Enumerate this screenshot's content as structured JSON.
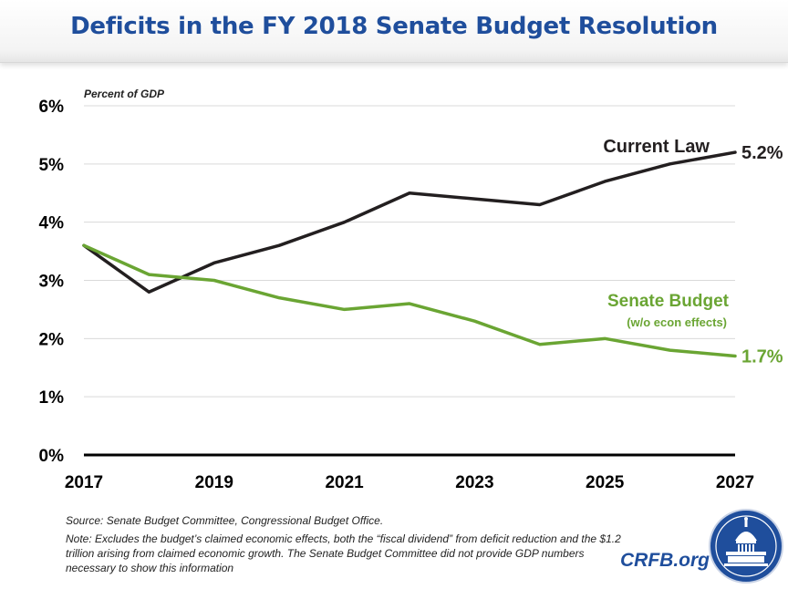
{
  "title": "Deficits in the FY 2018 Senate Budget Resolution",
  "colors": {
    "title": "#1f4e9c",
    "current_law": "#231f20",
    "senate_budget": "#6aa533"
  },
  "chart_data": {
    "type": "line",
    "title": "Deficits in the FY 2018 Senate Budget Resolution",
    "ylabel": "Percent of GDP",
    "xlabel": "",
    "ylim": [
      0,
      6
    ],
    "xlim": [
      2017,
      2027
    ],
    "grid": true,
    "y_ticks": [
      0,
      1,
      2,
      3,
      4,
      5,
      6
    ],
    "y_tick_labels": [
      "0%",
      "1%",
      "2%",
      "3%",
      "4%",
      "5%",
      "6%"
    ],
    "x_ticks": [
      2017,
      2019,
      2021,
      2023,
      2025,
      2027
    ],
    "x_tick_labels": [
      "2017",
      "2019",
      "2021",
      "2023",
      "2025",
      "2027"
    ],
    "x": [
      2017,
      2018,
      2019,
      2020,
      2021,
      2022,
      2023,
      2024,
      2025,
      2026,
      2027
    ],
    "series": [
      {
        "name": "Current Law",
        "color": "#231f20",
        "values": [
          3.6,
          2.8,
          3.3,
          3.6,
          4.0,
          4.5,
          4.4,
          4.3,
          4.7,
          5.0,
          5.2
        ],
        "end_label": "5.2%"
      },
      {
        "name": "Senate Budget",
        "sublabel": "(w/o econ effects)",
        "color": "#6aa533",
        "values": [
          3.6,
          3.1,
          3.0,
          2.7,
          2.5,
          2.6,
          2.3,
          1.9,
          2.0,
          1.8,
          1.7
        ],
        "end_label": "1.7%"
      }
    ]
  },
  "footnotes": {
    "source": "Source: Senate Budget Committee, Congressional Budget Office.",
    "note": "Note: Excludes the budget’s claimed economic effects, both the “fiscal dividend” from deficit reduction and the $1.2 trillion arising from claimed economic growth. The Senate Budget Committee did not provide GDP numbers necessary to show this information"
  },
  "brand": {
    "site": "CRFB.org",
    "seal_icon": "capitol-dome-icon"
  }
}
